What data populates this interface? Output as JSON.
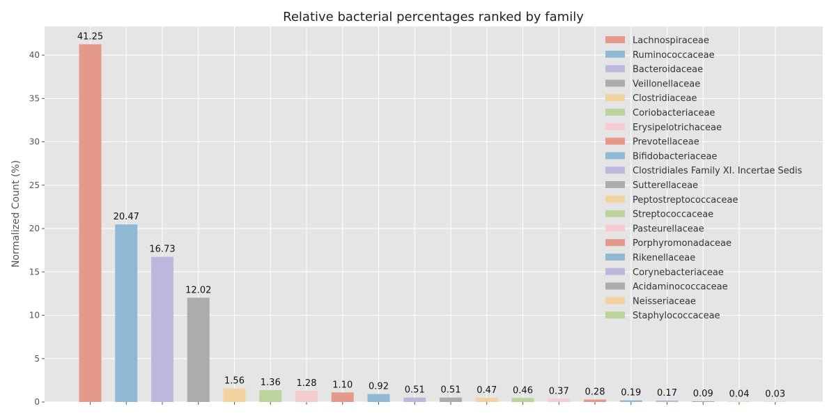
{
  "chart_data": {
    "type": "bar",
    "title": "Relative bacterial percentages ranked by family",
    "xlabel": "",
    "ylabel": "Normalized Count (%)",
    "ylim": [
      0,
      43.3
    ],
    "yticks": [
      0,
      5,
      10,
      15,
      20,
      25,
      30,
      35,
      40
    ],
    "grid": true,
    "legend_position": "top-right",
    "categories": [
      "Lachnospiraceae",
      "Ruminococcaceae",
      "Bacteroidaceae",
      "Veillonellaceae",
      "Clostridiaceae",
      "Coriobacteriaceae",
      "Erysipelotrichaceae",
      "Prevotellaceae",
      "Bifidobacteriaceae",
      "Clostridiales Family XI. Incertae Sedis",
      "Sutterellaceae",
      "Peptostreptococcaceae",
      "Streptococcaceae",
      "Pasteurellaceae",
      "Porphyromonadaceae",
      "Rikenellaceae",
      "Corynebacteriaceae",
      "Acidaminococcaceae",
      "Neisseriaceae",
      "Staphylococcaceae"
    ],
    "values": [
      41.25,
      20.47,
      16.73,
      12.02,
      1.56,
      1.36,
      1.28,
      1.1,
      0.92,
      0.51,
      0.51,
      0.47,
      0.46,
      0.37,
      0.28,
      0.19,
      0.17,
      0.09,
      0.04,
      0.03
    ],
    "value_labels": [
      "41.25",
      "20.47",
      "16.73",
      "12.02",
      "1.56",
      "1.36",
      "1.28",
      "1.10",
      "0.92",
      "0.51",
      "0.51",
      "0.47",
      "0.46",
      "0.37",
      "0.28",
      "0.19",
      "0.17",
      "0.09",
      "0.04",
      "0.03"
    ],
    "colors": [
      "#e5998b",
      "#8fb9d5",
      "#bdb6dd",
      "#acacac",
      "#f2d3a0",
      "#bcd49c",
      "#f4cbce"
    ]
  }
}
